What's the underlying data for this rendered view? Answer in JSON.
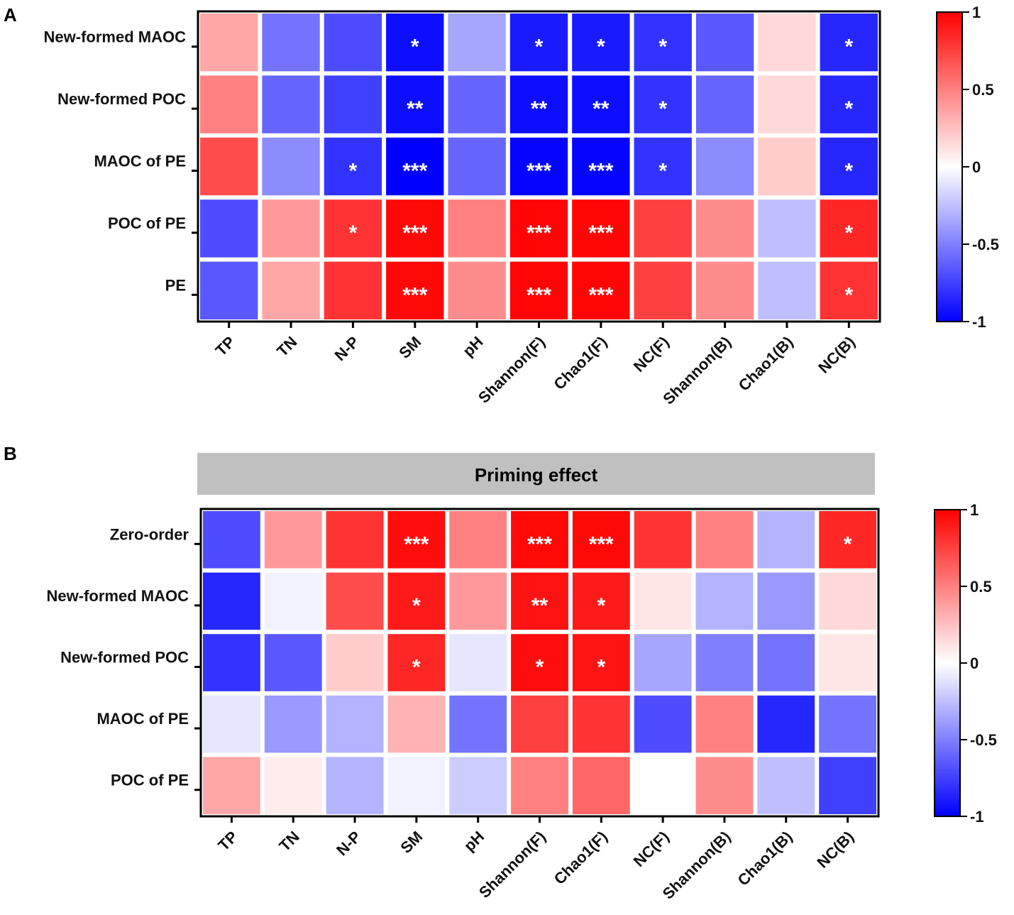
{
  "chart_data": [
    {
      "type": "heatmap",
      "panel_label": "A",
      "title": "",
      "rows": [
        "New-formed MAOC",
        "New-formed POC",
        "MAOC of PE",
        "POC of PE",
        "PE"
      ],
      "columns": [
        "TP",
        "TN",
        "N-P",
        "SM",
        "pH",
        "Shannon(F)",
        "Chao1(F)",
        "NC(F)",
        "Shannon(B)",
        "Chao1(B)",
        "NC(B)"
      ],
      "values": [
        [
          0.35,
          -0.55,
          -0.7,
          -0.95,
          -0.35,
          -0.9,
          -0.9,
          -0.8,
          -0.65,
          0.15,
          -0.85
        ],
        [
          0.5,
          -0.6,
          -0.75,
          -0.95,
          -0.6,
          -0.95,
          -0.95,
          -0.8,
          -0.6,
          0.15,
          -0.85
        ],
        [
          0.7,
          -0.45,
          -0.8,
          -1.0,
          -0.6,
          -0.98,
          -0.98,
          -0.8,
          -0.45,
          0.2,
          -0.85
        ],
        [
          -0.7,
          0.4,
          0.8,
          0.97,
          0.5,
          0.98,
          0.98,
          0.75,
          0.45,
          -0.25,
          0.85
        ],
        [
          -0.65,
          0.35,
          0.8,
          0.97,
          0.45,
          0.98,
          0.98,
          0.75,
          0.45,
          -0.25,
          0.8
        ]
      ],
      "significance": [
        [
          "",
          "",
          "",
          "*",
          "",
          "*",
          "*",
          "*",
          "",
          "",
          "*"
        ],
        [
          "",
          "",
          "",
          "**",
          "",
          "**",
          "**",
          "*",
          "",
          "",
          "*"
        ],
        [
          "",
          "",
          "*",
          "***",
          "",
          "***",
          "***",
          "*",
          "",
          "",
          "*"
        ],
        [
          "",
          "",
          "*",
          "***",
          "",
          "***",
          "***",
          "",
          "",
          "",
          "*"
        ],
        [
          "",
          "",
          "",
          "***",
          "",
          "***",
          "***",
          "",
          "",
          "",
          "*"
        ]
      ],
      "colorbar": {
        "range": [
          -1,
          1
        ],
        "ticks": [
          "1",
          "0.5",
          "0",
          "-0.5",
          "-1"
        ],
        "low_color": "#0000ff",
        "mid_color": "#ffffff",
        "high_color": "#ff0000"
      }
    },
    {
      "type": "heatmap",
      "panel_label": "B",
      "title": "Priming effect",
      "rows": [
        "Zero-order",
        "New-formed MAOC",
        "New-formed POC",
        "MAOC of PE",
        "POC of PE"
      ],
      "columns": [
        "TP",
        "TN",
        "N-P",
        "SM",
        "pH",
        "Shannon(F)",
        "Chao1(F)",
        "NC(F)",
        "Shannon(B)",
        "Chao1(B)",
        "NC(B)"
      ],
      "values": [
        [
          -0.7,
          0.4,
          0.8,
          0.95,
          0.5,
          0.97,
          0.97,
          0.8,
          0.5,
          -0.3,
          0.85
        ],
        [
          -0.85,
          -0.05,
          0.7,
          0.9,
          0.4,
          0.93,
          0.9,
          0.1,
          -0.3,
          -0.4,
          0.15
        ],
        [
          -0.8,
          -0.65,
          0.2,
          0.85,
          -0.1,
          0.95,
          0.92,
          -0.35,
          -0.5,
          -0.55,
          0.1
        ],
        [
          -0.1,
          -0.4,
          -0.3,
          0.3,
          -0.55,
          0.75,
          0.8,
          -0.7,
          0.5,
          -0.85,
          -0.55
        ],
        [
          0.35,
          0.07,
          -0.3,
          -0.05,
          -0.2,
          0.5,
          0.6,
          0.0,
          0.45,
          -0.25,
          -0.75
        ]
      ],
      "significance": [
        [
          "",
          "",
          "",
          "***",
          "",
          "***",
          "***",
          "",
          "",
          "",
          "*"
        ],
        [
          "",
          "",
          "",
          "*",
          "",
          "**",
          "*",
          "",
          "",
          "",
          ""
        ],
        [
          "",
          "",
          "",
          "*",
          "",
          "*",
          "*",
          "",
          "",
          "",
          ""
        ],
        [
          "",
          "",
          "",
          "",
          "",
          "",
          "",
          "",
          "",
          "",
          ""
        ],
        [
          "",
          "",
          "",
          "",
          "",
          "",
          "",
          "",
          "",
          "",
          ""
        ]
      ],
      "colorbar": {
        "range": [
          -1,
          1
        ],
        "ticks": [
          "1",
          "0.5",
          "0",
          "-0.5",
          "-1"
        ],
        "low_color": "#0000ff",
        "mid_color": "#ffffff",
        "high_color": "#ff0000"
      }
    }
  ]
}
